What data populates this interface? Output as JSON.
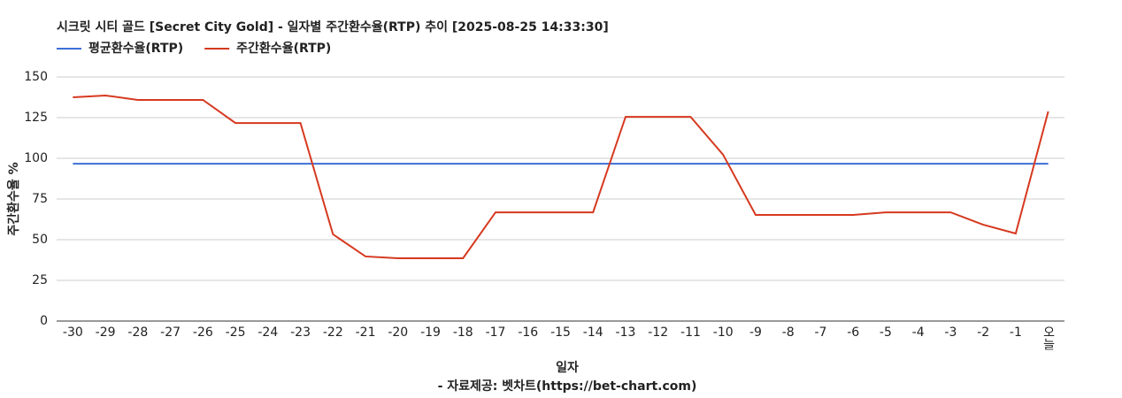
{
  "chart_data": {
    "type": "line",
    "title": "시크릿 시티 골드 [Secret City Gold] - 일자별 주간환수율(RTP) 추이 [2025-08-25 14:33:30]",
    "x_label": "일자",
    "y_label": "주간환수율 %",
    "footer": "- 자료제공: 벳차트(https://bet-chart.com)",
    "categories": [
      "-30",
      "-29",
      "-28",
      "-27",
      "-26",
      "-25",
      "-24",
      "-23",
      "-22",
      "-21",
      "-20",
      "-19",
      "-18",
      "-17",
      "-16",
      "-15",
      "-14",
      "-13",
      "-12",
      "-11",
      "-10",
      "-9",
      "-8",
      "-7",
      "-6",
      "-5",
      "-4",
      "-3",
      "-2",
      "-1",
      "오늘"
    ],
    "series": [
      {
        "name": "평균환수율(RTP)",
        "color": "#3c6fd6",
        "values": [
          96.7,
          96.7,
          96.7,
          96.7,
          96.7,
          96.7,
          96.7,
          96.7,
          96.7,
          96.7,
          96.7,
          96.7,
          96.7,
          96.7,
          96.7,
          96.7,
          96.7,
          96.7,
          96.7,
          96.7,
          96.7,
          96.7,
          96.7,
          96.7,
          96.7,
          96.7,
          96.7,
          96.7,
          96.7,
          96.7,
          96.7
        ]
      },
      {
        "name": "주간환수율(RTP)",
        "color": "#d6391f",
        "values": [
          137.5,
          138.6,
          135.9,
          135.9,
          135.9,
          121.7,
          121.7,
          121.7,
          53.3,
          39.7,
          38.6,
          38.6,
          38.6,
          66.8,
          66.8,
          66.8,
          66.8,
          125.5,
          125.5,
          125.5,
          102.2,
          65.2,
          65.2,
          65.2,
          65.2,
          66.8,
          66.8,
          66.8,
          59.2,
          53.8,
          128.8
        ]
      }
    ],
    "ylim": [
      0,
      150
    ],
    "yticks": [
      0,
      25,
      50,
      75,
      100,
      125,
      150
    ],
    "grid": true,
    "legend": "top-left"
  }
}
